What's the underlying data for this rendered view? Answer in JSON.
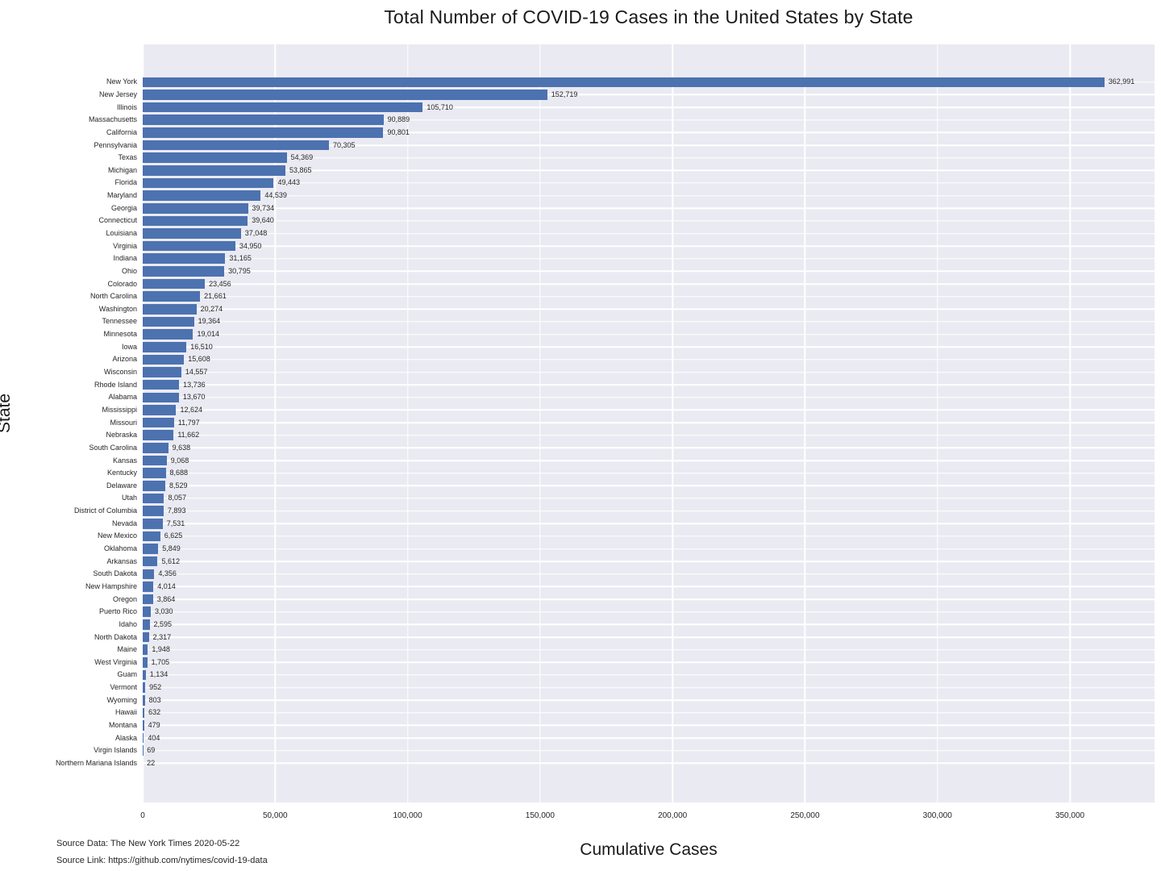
{
  "title": "Total Number of COVID-19 Cases in the United States by State",
  "xlabel": "Cumulative Cases",
  "ylabel": "State",
  "source": {
    "data_line": "Source Data: The New York Times 2020-05-22",
    "link_line": "Source Link: https://github.com/nytimes/covid-19-data"
  },
  "colors": {
    "bar": "#4c72b0",
    "plot_background": "#eaeaf2",
    "grid": "#ffffff",
    "text": "#262626"
  },
  "chart_data": {
    "type": "bar",
    "orientation": "horizontal",
    "title": "Total Number of COVID-19 Cases in the United States by State",
    "xlabel": "Cumulative Cases",
    "ylabel": "State",
    "grid": true,
    "legend": false,
    "xlim": [
      0,
      381950
    ],
    "xticks": [
      0,
      50000,
      100000,
      150000,
      200000,
      250000,
      300000,
      350000
    ],
    "xtick_labels": [
      "0",
      "50,000",
      "100,000",
      "150,000",
      "200,000",
      "250,000",
      "300,000",
      "350,000"
    ],
    "categories": [
      "New York",
      "New Jersey",
      "Illinois",
      "Massachusetts",
      "California",
      "Pennsylvania",
      "Texas",
      "Michigan",
      "Florida",
      "Maryland",
      "Georgia",
      "Connecticut",
      "Louisiana",
      "Virginia",
      "Indiana",
      "Ohio",
      "Colorado",
      "North Carolina",
      "Washington",
      "Tennessee",
      "Minnesota",
      "Iowa",
      "Arizona",
      "Wisconsin",
      "Rhode Island",
      "Alabama",
      "Mississippi",
      "Missouri",
      "Nebraska",
      "South Carolina",
      "Kansas",
      "Kentucky",
      "Delaware",
      "Utah",
      "District of Columbia",
      "Nevada",
      "New Mexico",
      "Oklahoma",
      "Arkansas",
      "South Dakota",
      "New Hampshire",
      "Oregon",
      "Puerto Rico",
      "Idaho",
      "North Dakota",
      "Maine",
      "West Virginia",
      "Guam",
      "Vermont",
      "Wyoming",
      "Hawaii",
      "Montana",
      "Alaska",
      "Virgin Islands",
      "Northern Mariana Islands"
    ],
    "values": [
      362991,
      152719,
      105710,
      90889,
      90801,
      70305,
      54369,
      53865,
      49443,
      44539,
      39734,
      39640,
      37048,
      34950,
      31165,
      30795,
      23456,
      21661,
      20274,
      19364,
      19014,
      16510,
      15608,
      14557,
      13736,
      13670,
      12624,
      11797,
      11662,
      9638,
      9068,
      8688,
      8529,
      8057,
      7893,
      7531,
      6625,
      5849,
      5612,
      4356,
      4014,
      3864,
      3030,
      2595,
      2317,
      1948,
      1705,
      1134,
      952,
      803,
      632,
      479,
      404,
      69,
      22
    ],
    "value_labels": [
      "362,991",
      "152,719",
      "105,710",
      "90,889",
      "90,801",
      "70,305",
      "54,369",
      "53,865",
      "49,443",
      "44,539",
      "39,734",
      "39,640",
      "37,048",
      "34,950",
      "31,165",
      "30,795",
      "23,456",
      "21,661",
      "20,274",
      "19,364",
      "19,014",
      "16,510",
      "15,608",
      "14,557",
      "13,736",
      "13,670",
      "12,624",
      "11,797",
      "11,662",
      "9,638",
      "9,068",
      "8,688",
      "8,529",
      "8,057",
      "7,893",
      "7,531",
      "6,625",
      "5,849",
      "5,612",
      "4,356",
      "4,014",
      "3,864",
      "3,030",
      "2,595",
      "2,317",
      "1,948",
      "1,705",
      "1,134",
      "952",
      "803",
      "632",
      "479",
      "404",
      "69",
      "22"
    ]
  }
}
